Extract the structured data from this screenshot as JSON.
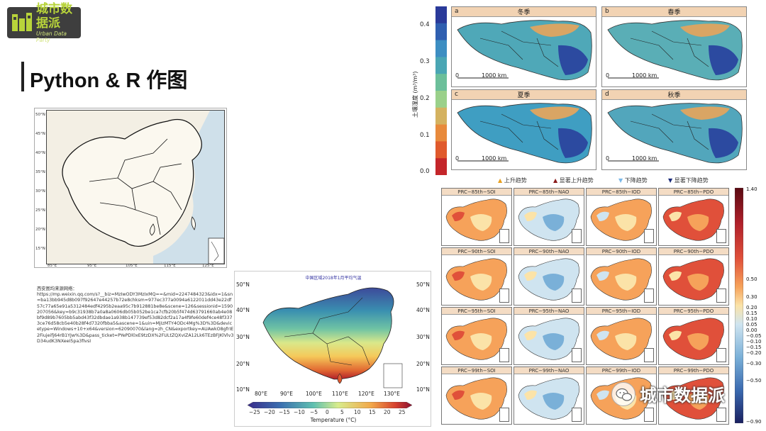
{
  "logo": {
    "name": "城市数据派",
    "subtitle": "Urban Data Party"
  },
  "title": "Python & R 作图",
  "map1": {
    "lat_ticks": [
      "50°N",
      "45°N",
      "40°N",
      "35°N",
      "30°N",
      "25°N",
      "20°N",
      "15°N"
    ],
    "lon_ticks": [
      "85°E",
      "95°E",
      "105°E",
      "115°E",
      "125°E"
    ]
  },
  "source_text": "西安图均来源网络：\nhttps://mp.weixin.qq.com/s?__biz=MzIwODY3MzIxMQ==&mid=2247484323&idx=1&sn=ba13bb945d8b097f92647e44257b72e8chksm=977ec377a0094a6122011dd43e22df57c77a65e91a5312484edf4295b2eaa95c7b912881be8e&scene=126&sessionid=1590207056&key=b9c31938b7a0a8a0606db05b052be1ca7cfb20b5f474d63791660ab4e08bf9d89b7605bb5abd43f32dbdae1a938b147739ef53d82dcf2a17a4f9fe60def4ce48f3373ce76d58cb5e40b28f4d7320fbba5&ascene=1&uin=MjIzMTY4ODc4Mg%3D%3D&devicetype=Windows+10+x64&version=62090070&lang=zh_CN&exportkey=AUAwkO8gfrIE2Fiujeifj64rB1YJw%3D&pass_ticket=PYePDl0xE9tzDX%2FULtZQXvIZA12Lk6TEzBFJKlVlv3D34udK3NXeeI5pa3fIvsI",
  "map2": {
    "title": "中国区域2018年1月平均气温",
    "lat_ticks_right": [
      "50°N",
      "40°N",
      "30°N",
      "20°N",
      "10°N"
    ],
    "lat_ticks_left": [
      "50°N",
      "40°N",
      "30°N",
      "20°N",
      "10°N"
    ],
    "lon_ticks": [
      "80°E",
      "90°E",
      "100°E",
      "110°E",
      "120°E",
      "130°E"
    ],
    "colorbar_ticks": [
      "−25",
      "−20",
      "−15",
      "−10",
      "−5",
      "0",
      "5",
      "10",
      "15",
      "20",
      "25"
    ],
    "colorbar_label": "Temperature (°C)"
  },
  "panelA": {
    "ylabel": "土壤湿度 (m³/m³)",
    "yticks": [
      "0.4",
      "0.3",
      "0.2",
      "0.1",
      "0.0"
    ],
    "subplots": [
      {
        "letter": "a",
        "season": "冬季"
      },
      {
        "letter": "b",
        "season": "春季"
      },
      {
        "letter": "c",
        "season": "夏季"
      },
      {
        "letter": "d",
        "season": "秋季"
      }
    ],
    "scale_zero": "0",
    "scale_km": "1000 km",
    "legend": [
      "上升趋势",
      "显著上升趋势",
      "下降趋势",
      "显著下降趋势"
    ],
    "legend_colors": [
      "#e8a020",
      "#8a1a1a",
      "#7ab8e8",
      "#1a2a7a"
    ],
    "colorbar_colors": [
      "#2a3a9a",
      "#2f5fb0",
      "#3d8ec2",
      "#4aa6b4",
      "#6cbf9a",
      "#9ad08a",
      "#d4b260",
      "#e88a3c",
      "#e05a2c",
      "#c4262a"
    ]
  },
  "panelB": {
    "rows": [
      [
        "PRC−85th−SOI",
        "PRC−85th−NAO",
        "PRC−85th−IOD",
        "PRC−85th−PDO"
      ],
      [
        "PRC−90th−SOI",
        "PRC−90th−NAO",
        "PRC−90th−IOD",
        "PRC−90th−PDO"
      ],
      [
        "PRC−95th−SOI",
        "PRC−95th−NAO",
        "PRC−95th−IOD",
        "PRC−95th−PDO"
      ],
      [
        "PRC−99th−SOI",
        "PRC−99th−NAO",
        "PRC−99th−IOD",
        "PRC−99th−PDO"
      ]
    ],
    "colorbar_ticks": [
      "1.40",
      "0.50",
      "0.30",
      "0.20",
      "0.15",
      "0.10",
      "0.05",
      "0.00",
      "−0.05",
      "−0.10",
      "−0.15",
      "−0.20",
      "−0.30",
      "−0.50",
      "−0.90"
    ]
  },
  "watermark": {
    "text": "城市数据派"
  }
}
